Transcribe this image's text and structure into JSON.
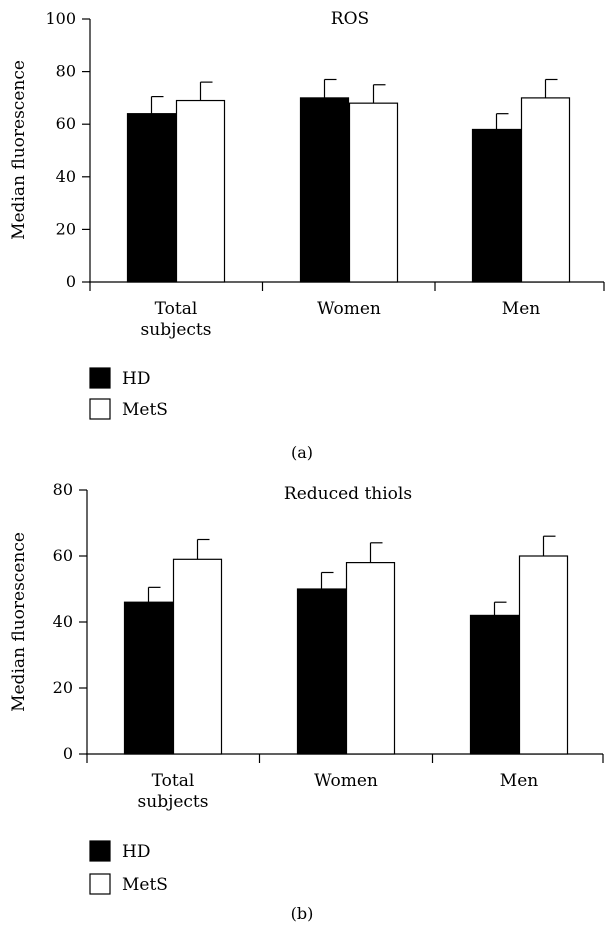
{
  "chart_data": [
    {
      "type": "bar",
      "panel_label": "(a)",
      "title": "ROS",
      "xlabel": "",
      "ylabel": "Median fluorescence",
      "ylim": [
        0,
        100
      ],
      "yticks": [
        0,
        20,
        40,
        60,
        80,
        100
      ],
      "categories": [
        "Total\nsubjects",
        "Women",
        "Men"
      ],
      "series": [
        {
          "name": "HD",
          "color": "#000000",
          "values": [
            64,
            70,
            58
          ],
          "errors": [
            6.5,
            7,
            6
          ]
        },
        {
          "name": "MetS",
          "color": "#ffffff",
          "values": [
            69,
            68,
            70
          ],
          "errors": [
            7,
            7,
            7
          ]
        }
      ],
      "grid": false,
      "legend": "bottom-left"
    },
    {
      "type": "bar",
      "panel_label": "(b)",
      "title": "Reduced thiols",
      "xlabel": "",
      "ylabel": "Median fluorescence",
      "ylim": [
        0,
        80
      ],
      "yticks": [
        0,
        20,
        40,
        60,
        80
      ],
      "categories": [
        "Total\nsubjects",
        "Women",
        "Men"
      ],
      "series": [
        {
          "name": "HD",
          "color": "#000000",
          "values": [
            46,
            50,
            42
          ],
          "errors": [
            4.5,
            5,
            4
          ]
        },
        {
          "name": "MetS",
          "color": "#ffffff",
          "values": [
            59,
            58,
            60
          ],
          "errors": [
            6,
            6,
            6
          ]
        }
      ],
      "grid": false,
      "legend": "bottom-left"
    }
  ]
}
